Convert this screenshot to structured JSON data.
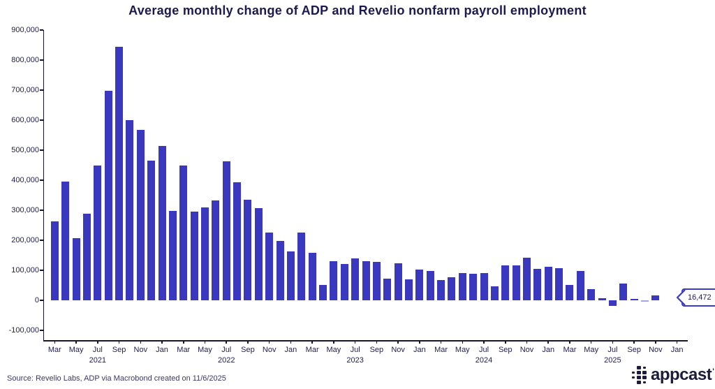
{
  "title": "Average monthly change of ADP and Revelio nonfarm payroll employment",
  "source_note": "Source: Revelio Labs, ADP via Macrobond created on 11/6/2025",
  "callout": {
    "label": "16,472"
  },
  "logo": {
    "text": "appcast",
    "mark": "'",
    "icon": "appcast-grid-icon"
  },
  "colors": {
    "bar": "#3938be",
    "bar_muted": "#a3a3e2",
    "axis": "#16142f",
    "label_text": "#232050",
    "title_text": "#1c1950",
    "callout_border": "#3c3bc8",
    "source_text": "#3b3963"
  },
  "chart_data": {
    "type": "bar",
    "title": "Average monthly change of ADP and Revelio nonfarm payroll employment",
    "xlabel": "",
    "ylabel": "",
    "grid": false,
    "legend": "none",
    "ylim": [
      -132000,
      900000
    ],
    "months_per_axis": 60,
    "categories": [
      "Mar 2021",
      "Apr 2021",
      "May 2021",
      "Jun 2021",
      "Jul 2021",
      "Aug 2021",
      "Sep 2021",
      "Oct 2021",
      "Nov 2021",
      "Dec 2021",
      "Jan 2022",
      "Feb 2022",
      "Mar 2022",
      "Apr 2022",
      "May 2022",
      "Jun 2022",
      "Jul 2022",
      "Aug 2022",
      "Sep 2022",
      "Oct 2022",
      "Nov 2022",
      "Dec 2022",
      "Jan 2023",
      "Feb 2023",
      "Mar 2023",
      "Apr 2023",
      "May 2023",
      "Jun 2023",
      "Jul 2023",
      "Aug 2023",
      "Sep 2023",
      "Oct 2023",
      "Nov 2023",
      "Dec 2023",
      "Jan 2024",
      "Feb 2024",
      "Mar 2024",
      "Apr 2024",
      "May 2024",
      "Jun 2024",
      "Jul 2024",
      "Aug 2024",
      "Sep 2024",
      "Oct 2024",
      "Nov 2024",
      "Dec 2024",
      "Jan 2025",
      "Feb 2025",
      "Mar 2025",
      "Apr 2025",
      "May 2025",
      "Jun 2025",
      "Jul 2025",
      "Aug 2025",
      "Sep 2025",
      "Oct 2025",
      "Nov 2025"
    ],
    "values": [
      262000,
      396000,
      208000,
      288000,
      450000,
      697000,
      845000,
      600000,
      568000,
      466000,
      515000,
      297000,
      448000,
      296000,
      310000,
      334000,
      462000,
      394000,
      336000,
      308000,
      226000,
      199000,
      164000,
      227000,
      158000,
      52000,
      130000,
      121000,
      141000,
      131000,
      129000,
      72000,
      124000,
      71000,
      102000,
      98000,
      69000,
      77000,
      90000,
      89000,
      91000,
      47000,
      117000,
      116000,
      142000,
      104000,
      111000,
      108000,
      52000,
      99000,
      38000,
      8000,
      -17000,
      57000,
      4000,
      -4000,
      16472
    ],
    "muted_bar_index": 55,
    "annotation": {
      "text": "16,472",
      "category": "Nov 2025",
      "value": 16472
    },
    "y_ticks": {
      "values": [
        900000,
        800000,
        700000,
        600000,
        500000,
        400000,
        300000,
        200000,
        100000,
        0,
        -100000
      ],
      "labels": [
        "900,000",
        "800,000",
        "700,000",
        "600,000",
        "500,000",
        "400,000",
        "300,000",
        "200,000",
        "100,000",
        "0",
        "-100,000"
      ]
    },
    "x_ticks": [
      {
        "label": "Mar",
        "month_index": 0
      },
      {
        "label": "May",
        "month_index": 2
      },
      {
        "label": "Jul",
        "month_index": 4
      },
      {
        "label": "Sep",
        "month_index": 6
      },
      {
        "label": "Nov",
        "month_index": 8
      },
      {
        "label": "Jan",
        "month_index": 10
      },
      {
        "label": "Mar",
        "month_index": 12
      },
      {
        "label": "May",
        "month_index": 14
      },
      {
        "label": "Jul",
        "month_index": 16
      },
      {
        "label": "Sep",
        "month_index": 18
      },
      {
        "label": "Nov",
        "month_index": 20
      },
      {
        "label": "Jan",
        "month_index": 22
      },
      {
        "label": "Mar",
        "month_index": 24
      },
      {
        "label": "May",
        "month_index": 26
      },
      {
        "label": "Jul",
        "month_index": 28
      },
      {
        "label": "Sep",
        "month_index": 30
      },
      {
        "label": "Nov",
        "month_index": 32
      },
      {
        "label": "Jan",
        "month_index": 34
      },
      {
        "label": "Mar",
        "month_index": 36
      },
      {
        "label": "May",
        "month_index": 38
      },
      {
        "label": "Jul",
        "month_index": 40
      },
      {
        "label": "Sep",
        "month_index": 42
      },
      {
        "label": "Nov",
        "month_index": 44
      },
      {
        "label": "Jan",
        "month_index": 46
      },
      {
        "label": "Mar",
        "month_index": 48
      },
      {
        "label": "May",
        "month_index": 50
      },
      {
        "label": "Jul",
        "month_index": 52
      },
      {
        "label": "Sep",
        "month_index": 54
      },
      {
        "label": "Nov",
        "month_index": 56
      },
      {
        "label": "Jan",
        "month_index": 58
      }
    ],
    "year_ticks": [
      {
        "label": "2021",
        "month_index": 4
      },
      {
        "label": "2022",
        "month_index": 16
      },
      {
        "label": "2023",
        "month_index": 28
      },
      {
        "label": "2024",
        "month_index": 40
      },
      {
        "label": "2025",
        "month_index": 52
      }
    ]
  }
}
